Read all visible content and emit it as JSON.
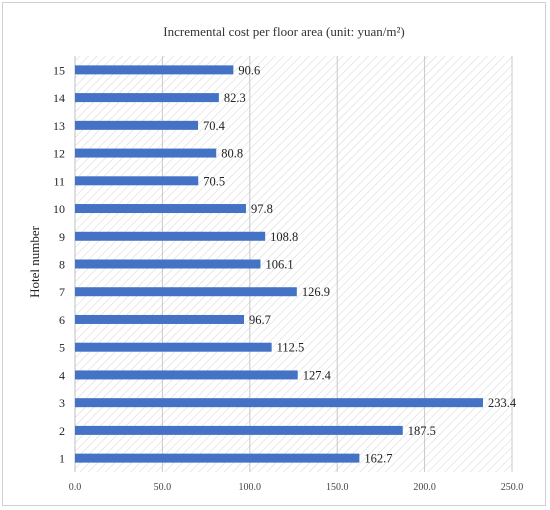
{
  "chart_data": {
    "type": "bar",
    "orientation": "horizontal",
    "title": "Incremental cost per floor area (unit: yuan/m²)",
    "ylabel": "Hotel number",
    "xlabel": "",
    "categories": [
      "1",
      "2",
      "3",
      "4",
      "5",
      "6",
      "7",
      "8",
      "9",
      "10",
      "11",
      "12",
      "13",
      "14",
      "15"
    ],
    "values": [
      162.7,
      187.5,
      233.4,
      127.4,
      112.5,
      96.7,
      126.9,
      106.1,
      108.8,
      97.8,
      70.5,
      80.8,
      70.4,
      82.3,
      90.6
    ],
    "value_labels": [
      "162.7",
      "187.5",
      "233.4",
      "127.4",
      "112.5",
      "96.7",
      "126.9",
      "106.1",
      "108.8",
      "97.8",
      "70.5",
      "80.8",
      "70.4",
      "82.3",
      "90.6"
    ],
    "xticks": [
      "0.0",
      "50.0",
      "100.0",
      "150.0",
      "200.0",
      "250.0"
    ],
    "xlim": [
      0,
      250
    ],
    "grid": "vertical",
    "plot_background": "diagonal hatch",
    "bar_color": "#4472c4"
  }
}
